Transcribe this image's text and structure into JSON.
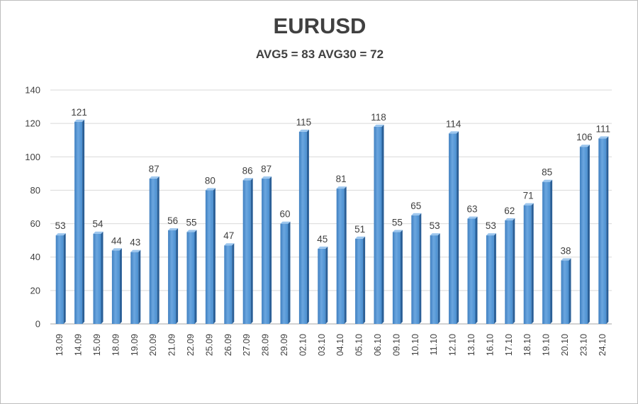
{
  "chart_data": {
    "type": "bar",
    "title": "EURUSD",
    "subtitle": "AVG5 = 83 AVG30 = 72",
    "categories": [
      "13.09",
      "14.09",
      "15.09",
      "18.09",
      "19.09",
      "20.09",
      "21.09",
      "22.09",
      "25.09",
      "26.09",
      "27.09",
      "28.09",
      "29.09",
      "02.10",
      "03.10",
      "04.10",
      "05.10",
      "06.10",
      "09.10",
      "10.10",
      "11.10",
      "12.10",
      "13.10",
      "16.10",
      "17.10",
      "18.10",
      "19.10",
      "20.10",
      "23.10",
      "24.10"
    ],
    "values": [
      53,
      121,
      54,
      44,
      43,
      87,
      56,
      55,
      80,
      47,
      86,
      87,
      60,
      115,
      45,
      81,
      51,
      118,
      55,
      65,
      53,
      114,
      63,
      53,
      62,
      71,
      85,
      38,
      106,
      111
    ],
    "ylim": [
      0,
      140
    ],
    "yticks": [
      0,
      20,
      40,
      60,
      80,
      100,
      120,
      140
    ],
    "grid": true,
    "legend": "none",
    "bar_color": "#4a8fd0"
  }
}
